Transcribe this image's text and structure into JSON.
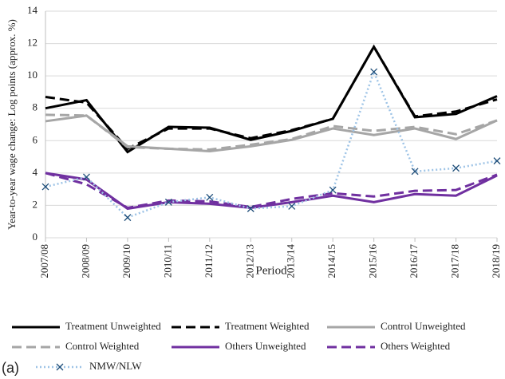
{
  "chart_data": {
    "type": "line",
    "y_label": "Year-to-year wage change: Log points (approx. %)",
    "x_label": "Period",
    "panel_label": "(a)",
    "categories": [
      "2007/08",
      "2008/09",
      "2009/10",
      "2010/11",
      "2011/12",
      "2012/13",
      "2013/14",
      "2014/15",
      "2015/16",
      "2016/17",
      "2017/18",
      "2018/19"
    ],
    "ylim": [
      0,
      14
    ],
    "yticks": [
      0,
      2,
      4,
      6,
      8,
      10,
      12,
      14
    ],
    "grid": true,
    "legend": "bottom",
    "series": [
      {
        "name": "Treatment Unweighted",
        "color": "#000000",
        "style": "solid",
        "values": [
          8.0,
          8.5,
          5.3,
          6.85,
          6.8,
          6.05,
          6.6,
          7.35,
          11.8,
          7.45,
          7.65,
          8.75
        ]
      },
      {
        "name": "Treatment Weighted",
        "color": "#000000",
        "style": "dashed",
        "values": [
          8.7,
          8.35,
          5.5,
          6.75,
          6.75,
          6.15,
          6.65,
          7.35,
          11.8,
          7.5,
          7.8,
          8.55
        ]
      },
      {
        "name": "Control Unweighted",
        "color": "#a6a6a6",
        "style": "solid",
        "values": [
          7.2,
          7.55,
          5.65,
          5.5,
          5.35,
          5.65,
          6.05,
          6.75,
          6.35,
          6.75,
          6.1,
          7.25
        ]
      },
      {
        "name": "Control Weighted",
        "color": "#a6a6a6",
        "style": "dashed",
        "values": [
          7.6,
          7.55,
          5.6,
          5.5,
          5.45,
          5.75,
          6.1,
          6.9,
          6.6,
          6.85,
          6.4,
          7.25
        ]
      },
      {
        "name": "Others Unweighted",
        "color": "#7030a0",
        "style": "solid",
        "values": [
          4.0,
          3.6,
          1.8,
          2.2,
          2.1,
          1.85,
          2.2,
          2.6,
          2.2,
          2.7,
          2.6,
          3.85
        ]
      },
      {
        "name": "Others Weighted",
        "color": "#7030a0",
        "style": "dashed",
        "values": [
          4.0,
          3.3,
          1.85,
          2.3,
          2.25,
          1.9,
          2.4,
          2.75,
          2.55,
          2.9,
          2.95,
          3.9
        ]
      },
      {
        "name": "NMW/NLW",
        "color": "#9dc3e6",
        "style": "dotted",
        "marker": "x",
        "values": [
          3.15,
          3.75,
          1.25,
          2.2,
          2.5,
          1.8,
          1.95,
          2.95,
          10.25,
          4.1,
          4.3,
          4.75
        ]
      }
    ]
  }
}
